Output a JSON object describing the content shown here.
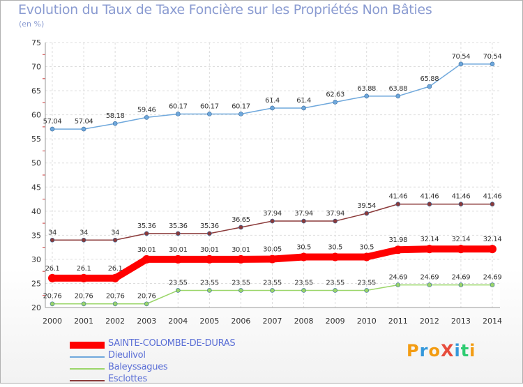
{
  "title": "Evolution du Taux de Taxe Foncière sur les Propriétés Non Bâties",
  "subtitle": "(en %)",
  "logo": {
    "text": "ProXiti",
    "colors": [
      "#f39c12",
      "#3498db",
      "#f39c12",
      "#e74c3c",
      "#3498db",
      "#2ecc71",
      "#f39c12"
    ]
  },
  "chart_data": {
    "type": "line",
    "x": [
      2000,
      2001,
      2002,
      2003,
      2004,
      2005,
      2006,
      2007,
      2008,
      2009,
      2010,
      2011,
      2012,
      2013,
      2014
    ],
    "ylim": [
      20,
      75
    ],
    "yticks": [
      20,
      25,
      30,
      35,
      40,
      45,
      50,
      55,
      60,
      65,
      70,
      75
    ],
    "grid": true,
    "legend_position": "bottom-left",
    "series": [
      {
        "name": "SAINTE-COLOMBE-DE-DURAS",
        "color": "#ff0000",
        "width": 10,
        "values": [
          26.1,
          26.1,
          26.1,
          30.01,
          30.01,
          30.01,
          30.01,
          30.05,
          30.5,
          30.5,
          30.5,
          31.98,
          32.14,
          32.14,
          32.14
        ],
        "labels": [
          "26.1",
          "26.1",
          "26.1",
          "30.01",
          "30.01",
          "30.01",
          "30.01",
          "30.05",
          "30.5",
          "30.5",
          "30.5",
          "31.98",
          "32.14",
          "32.14",
          "32.14"
        ]
      },
      {
        "name": "Dieulivol",
        "color": "#6fa8dc",
        "width": 1.5,
        "values": [
          57.04,
          57.04,
          58.18,
          59.46,
          60.17,
          60.17,
          60.17,
          61.4,
          61.4,
          62.63,
          63.88,
          63.88,
          65.88,
          70.54,
          70.54
        ],
        "labels": [
          "57.04",
          "57.04",
          "58.18",
          "59.46",
          "60.17",
          "60.17",
          "60.17",
          "61.4",
          "61.4",
          "62.63",
          "63.88",
          "63.88",
          "65.88",
          "70.54",
          "70.54"
        ]
      },
      {
        "name": "Baleyssagues",
        "color": "#9bd66a",
        "width": 1.5,
        "values": [
          20.76,
          20.76,
          20.76,
          20.76,
          23.55,
          23.55,
          23.55,
          23.55,
          23.55,
          23.55,
          23.55,
          24.69,
          24.69,
          24.69,
          24.69
        ],
        "labels": [
          "20.76",
          "20.76",
          "20.76",
          "20.76",
          "23.55",
          "23.55",
          "23.55",
          "23.55",
          "23.55",
          "23.55",
          "23.55",
          "24.69",
          "24.69",
          "24.69",
          "24.69"
        ]
      },
      {
        "name": "Esclottes",
        "color": "#8b3a3a",
        "width": 1.5,
        "values": [
          34,
          34,
          34,
          35.36,
          35.36,
          35.36,
          36.65,
          37.94,
          37.94,
          37.94,
          39.54,
          41.46,
          41.46,
          41.46,
          41.46
        ],
        "labels": [
          "34",
          "34",
          "34",
          "35.36",
          "35.36",
          "35.36",
          "36.65",
          "37.94",
          "37.94",
          "37.94",
          "39.54",
          "41.46",
          "41.46",
          "41.46",
          "41.46"
        ]
      }
    ]
  }
}
